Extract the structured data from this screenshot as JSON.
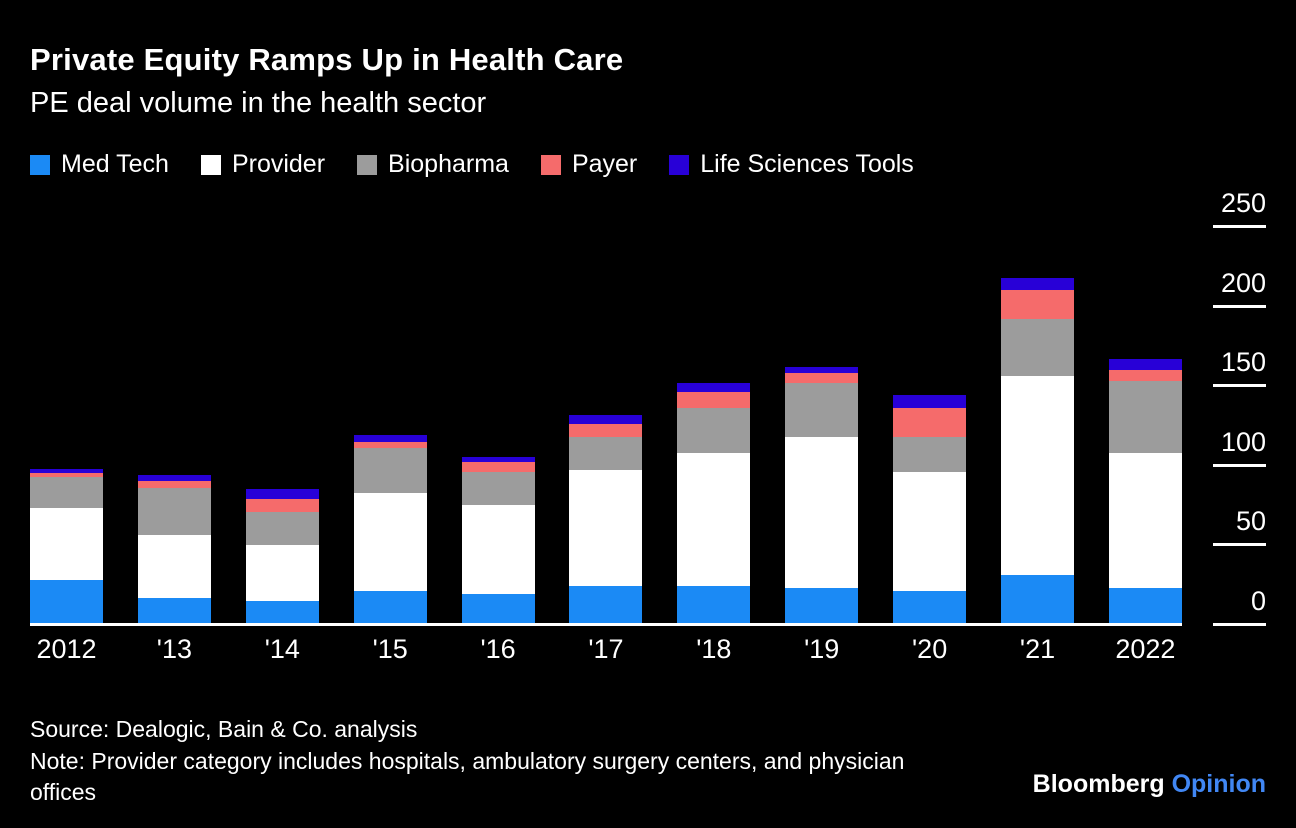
{
  "header": {
    "title": "Private Equity Ramps Up in Health Care",
    "subtitle": "PE deal volume in the health sector"
  },
  "chart_data": {
    "type": "bar",
    "stacked": true,
    "title": "Private Equity Ramps Up in Health Care",
    "subtitle": "PE deal volume in the health sector",
    "xlabel": "",
    "ylabel": "",
    "categories": [
      "2012",
      "'13",
      "'14",
      "'15",
      "'16",
      "'17",
      "'18",
      "'19",
      "'20",
      "'21",
      "2022"
    ],
    "series": [
      {
        "name": "Med Tech",
        "color": "#1b8af5",
        "values": [
          27,
          16,
          14,
          20,
          18,
          23,
          23,
          22,
          20,
          30,
          22
        ]
      },
      {
        "name": "Provider",
        "color": "#ffffff",
        "values": [
          45,
          39,
          35,
          62,
          56,
          73,
          84,
          95,
          75,
          125,
          85
        ]
      },
      {
        "name": "Biopharma",
        "color": "#9c9c9c",
        "values": [
          20,
          30,
          21,
          28,
          21,
          21,
          28,
          34,
          22,
          36,
          45
        ]
      },
      {
        "name": "Payer",
        "color": "#f56b6b",
        "values": [
          2,
          4,
          8,
          4,
          6,
          8,
          10,
          6,
          18,
          18,
          7
        ]
      },
      {
        "name": "Life Sciences Tools",
        "color": "#2800d7",
        "values": [
          3,
          4,
          6,
          4,
          3,
          6,
          6,
          4,
          8,
          8,
          7
        ]
      }
    ],
    "ylim": [
      0,
      250
    ],
    "yticks": [
      0,
      50,
      100,
      150,
      200,
      250
    ],
    "grid": false,
    "legend_position": "top",
    "background": "#000000",
    "axis_color": "#ffffff"
  },
  "footer": {
    "source": "Source: Dealogic, Bain & Co. analysis",
    "note": "Note: Provider category includes hospitals, ambulatory surgery centers, and physician offices",
    "brand": "Bloomberg",
    "brand_suffix": "Opinion",
    "brand_suffix_color": "#4187f4"
  }
}
